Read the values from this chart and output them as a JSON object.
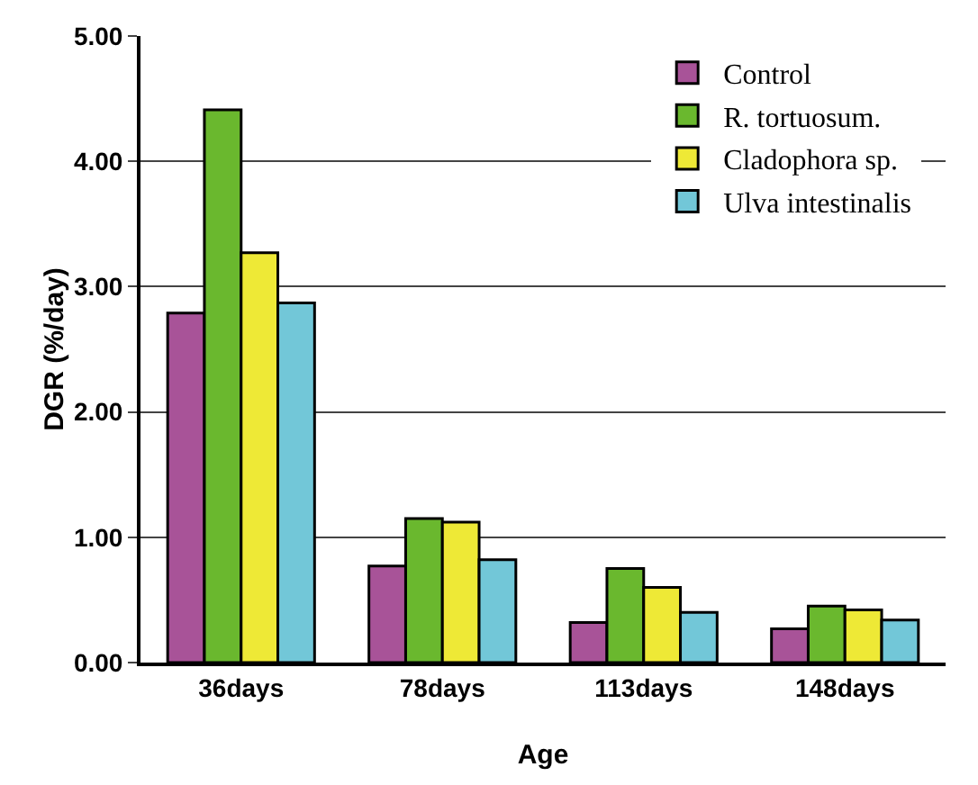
{
  "chart_data": {
    "type": "bar",
    "xlabel": "Age",
    "ylabel": "DGR (%/day)",
    "categories": [
      "36days",
      "78days",
      "113days",
      "148days"
    ],
    "series": [
      {
        "name": "Control",
        "color": "#a85398",
        "values": [
          2.79,
          0.77,
          0.32,
          0.27
        ]
      },
      {
        "name": "R. tortuosum.",
        "color": "#6ab82e",
        "values": [
          4.41,
          1.15,
          0.75,
          0.45
        ]
      },
      {
        "name": "Cladophora sp.",
        "color": "#eee936",
        "values": [
          3.27,
          1.12,
          0.6,
          0.42
        ]
      },
      {
        "name": "Ulva intestinalis",
        "color": "#72c7d8",
        "values": [
          2.87,
          0.82,
          0.4,
          0.34
        ]
      }
    ],
    "ylim": [
      0,
      5
    ],
    "yticks": [
      {
        "value": 0,
        "label": "0.00"
      },
      {
        "value": 1,
        "label": "1.00"
      },
      {
        "value": 2,
        "label": "2.00"
      },
      {
        "value": 3,
        "label": "3.00"
      },
      {
        "value": 4,
        "label": "4.00"
      },
      {
        "value": 5,
        "label": "5.00"
      }
    ],
    "grid": "y",
    "legend": "top right"
  }
}
